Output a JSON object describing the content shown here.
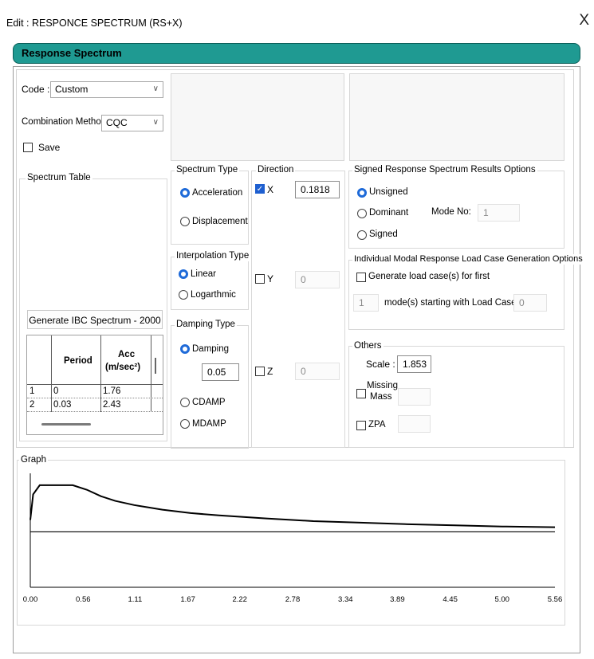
{
  "window": {
    "title": "Edit : RESPONCE SPECTRUM (RS+X)",
    "close": "X"
  },
  "header": {
    "title": "Response Spectrum"
  },
  "code": {
    "label": "Code :",
    "value": "Custom"
  },
  "combination": {
    "label": "Combination Method",
    "value": "CQC"
  },
  "save": {
    "label": "Save",
    "checked": false
  },
  "spectrum_table": {
    "label": "Spectrum Table",
    "generate_button": "Generate IBC Spectrum - 2000",
    "columns": [
      "Period",
      "Acc",
      "(m/sec²)"
    ],
    "rows": [
      {
        "index": "1",
        "period": "0",
        "acc": "1.76"
      },
      {
        "index": "2",
        "period": "0.03",
        "acc": "2.43"
      }
    ]
  },
  "spectrum_type": {
    "label": "Spectrum Type",
    "options": [
      "Acceleration",
      "Displacement"
    ],
    "selected": "Acceleration"
  },
  "interpolation": {
    "label": "Interpolation Type",
    "options": [
      "Linear",
      "Logarthmic"
    ],
    "selected": "Linear"
  },
  "damping": {
    "label": "Damping Type",
    "options": [
      "Damping",
      "CDAMP",
      "MDAMP"
    ],
    "selected": "Damping",
    "value": "0.05"
  },
  "direction": {
    "label": "Direction",
    "x": {
      "label": "X",
      "checked": true,
      "value": "0.1818"
    },
    "y": {
      "label": "Y",
      "checked": false,
      "value": "0"
    },
    "z": {
      "label": "Z",
      "checked": false,
      "value": "0"
    }
  },
  "signed": {
    "label": "Signed Response Spectrum Results Options",
    "options": [
      "Unsigned",
      "Dominant",
      "Signed"
    ],
    "selected": "Unsigned",
    "mode_label": "Mode No:",
    "mode_value": "1"
  },
  "modal": {
    "label": "Individual Modal Response Load Case Generation Options",
    "generate_label": "Generate load case(s) for first",
    "count": "1",
    "starting_label": "mode(s) starting with Load Case no.",
    "case_no": "0"
  },
  "others": {
    "label": "Others",
    "scale_label": "Scale :",
    "scale_value": "1.853",
    "missing_mass_line1": "Missing",
    "missing_mass_line2": "Mass",
    "zpa_label": "ZPA"
  },
  "graph": {
    "label": "Graph",
    "x_ticks": [
      "0.00",
      "0.56",
      "1.11",
      "1.67",
      "2.22",
      "2.78",
      "3.34",
      "3.89",
      "4.45",
      "5.00",
      "5.56"
    ]
  },
  "chart_data": {
    "type": "line",
    "xlim": [
      0,
      5.56
    ],
    "ylim": [
      0,
      2.98
    ],
    "x_ticks": [
      0.0,
      0.56,
      1.11,
      1.67,
      2.22,
      2.78,
      3.34,
      3.89,
      4.45,
      5.0,
      5.56
    ],
    "grid": false,
    "series": [
      {
        "x": [
          0,
          0.03,
          0.1,
          0.15,
          0.3,
          0.45,
          0.6,
          0.75,
          0.9,
          1.1,
          1.4,
          1.7,
          2.0,
          2.5,
          3.0,
          3.5,
          4.0,
          4.5,
          5.0,
          5.56
        ],
        "y": [
          1.76,
          2.43,
          2.67,
          2.67,
          2.67,
          2.67,
          2.55,
          2.38,
          2.26,
          2.15,
          2.03,
          1.94,
          1.88,
          1.8,
          1.73,
          1.69,
          1.65,
          1.62,
          1.59,
          1.57
        ]
      },
      {
        "x": [
          0,
          5.56
        ],
        "y": [
          1.45,
          1.45
        ]
      }
    ]
  },
  "colors": {
    "header": "#1f9a92",
    "radio_selected": "#1e6ad8",
    "checkbox_checked": "#1e5fd0"
  }
}
